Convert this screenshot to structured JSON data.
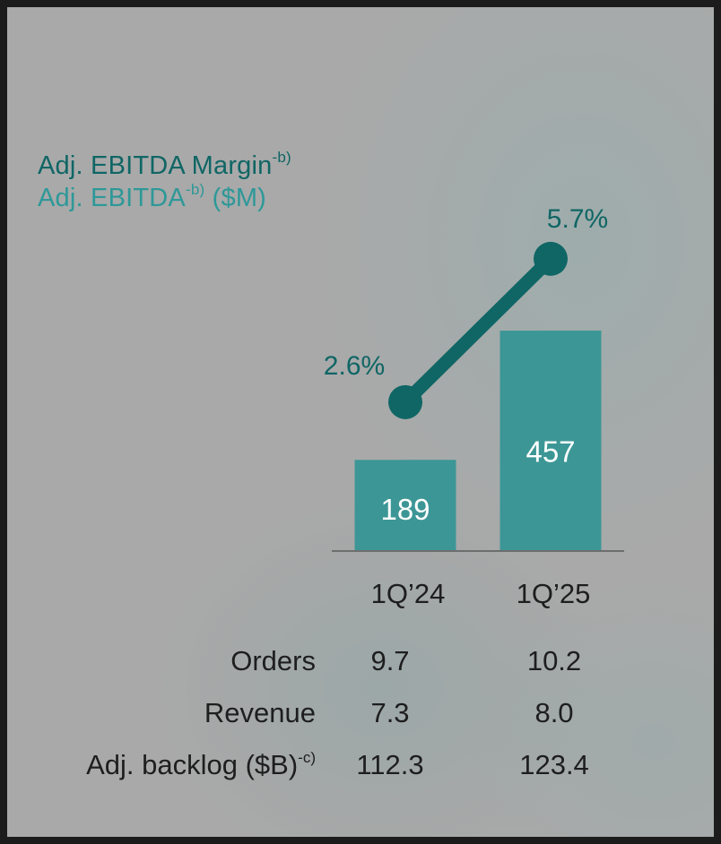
{
  "legend": {
    "margin": {
      "label": "Adj. EBITDA Margin",
      "note": "-b)",
      "color": "#0f6665"
    },
    "ebitda": {
      "label": "Adj. EBITDA",
      "note": "-b)",
      "unit": " ($M)",
      "color": "#2e9898"
    }
  },
  "chart_data": {
    "type": "bar",
    "categories": [
      "1Q’24",
      "1Q’25"
    ],
    "series": [
      {
        "name": "Adj. EBITDA ($M)",
        "type": "bar",
        "values": [
          189,
          457
        ],
        "labels": [
          "189",
          "457"
        ],
        "color": "#3d9696"
      },
      {
        "name": "Adj. EBITDA Margin",
        "type": "line",
        "values": [
          2.6,
          5.7
        ],
        "labels": [
          "2.6%",
          "5.7%"
        ],
        "color": "#0f6665"
      }
    ],
    "xlabel": "",
    "ylabel": "",
    "grid": false,
    "legend_position": "top-left"
  },
  "table": {
    "rows": [
      {
        "label": "Orders",
        "note": "",
        "values": [
          "9.7",
          "10.2"
        ]
      },
      {
        "label": "Revenue",
        "note": "",
        "values": [
          "7.3",
          "8.0"
        ]
      },
      {
        "label": "Adj. backlog ($B)",
        "note": "-c)",
        "values": [
          "112.3",
          "123.4"
        ]
      }
    ]
  }
}
